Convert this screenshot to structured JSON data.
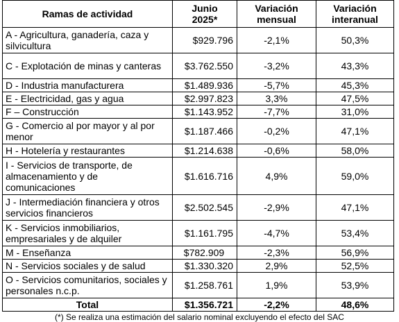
{
  "headers": {
    "col1": "Ramas de actividad",
    "col2_line1": "Junio",
    "col2_line2": "2025*",
    "col3_line1": "Variación",
    "col3_line2": "mensual",
    "col4_line1": "Variación",
    "col4_line2": "interanual"
  },
  "rows": [
    {
      "name": "A - Agricultura, ganadería, caza y silvicultura",
      "value": "$929.796",
      "monthly": "-2,1%",
      "yearly": "50,3%"
    },
    {
      "name": "C - Explotación de minas y canteras",
      "value": "$3.762.550",
      "monthly": "-3,2%",
      "yearly": "43,3%"
    },
    {
      "name": "D - Industria manufacturera",
      "value": "$1.489.936",
      "monthly": "-5,7%",
      "yearly": "45,3%"
    },
    {
      "name": "E - Electricidad, gas y agua",
      "value": "$2.997.823",
      "monthly": "3,3%",
      "yearly": "47,5%"
    },
    {
      "name": "F – Construcción",
      "value": "$1.143.952",
      "monthly": "-7,7%",
      "yearly": "31,0%"
    },
    {
      "name": "G - Comercio al por mayor y al por menor",
      "value": "$1.187.466",
      "monthly": "-0,2%",
      "yearly": "47,1%"
    },
    {
      "name": "H - Hotelería y restaurantes",
      "value": "$1.214.638",
      "monthly": "-0,6%",
      "yearly": "58,0%"
    },
    {
      "name": "I - Servicios de transporte, de almacenamiento y de comunicaciones",
      "value": "$1.616.716",
      "monthly": "4,9%",
      "yearly": "59,0%"
    },
    {
      "name": "J - Intermediación financiera y otros servicios financieros",
      "value": "$2.502.545",
      "monthly": "-2,9%",
      "yearly": "47,1%"
    },
    {
      "name": "K - Servicios inmobiliarios, empresariales y de alquiler",
      "value": "$1.161.795",
      "monthly": "-4,7%",
      "yearly": "53,4%"
    },
    {
      "name": "M - Enseñanza",
      "value": "$782.909",
      "monthly": "-2,3%",
      "yearly": "56,9%"
    },
    {
      "name": "N - Servicios sociales y de salud",
      "value": "$1.330.320",
      "monthly": "2,9%",
      "yearly": "52,5%"
    },
    {
      "name": "O - Servicios comunitarios, sociales y personales n.c.p.",
      "value": "$1.258.761",
      "monthly": "1,9%",
      "yearly": "53,9%"
    }
  ],
  "total": {
    "label": "Total",
    "value": "$1.356.721",
    "monthly": "-2,2%",
    "yearly": "48,6%"
  },
  "footnote": "(*) Se realiza una estimación del salario nominal excluyendo el efecto del SAC"
}
